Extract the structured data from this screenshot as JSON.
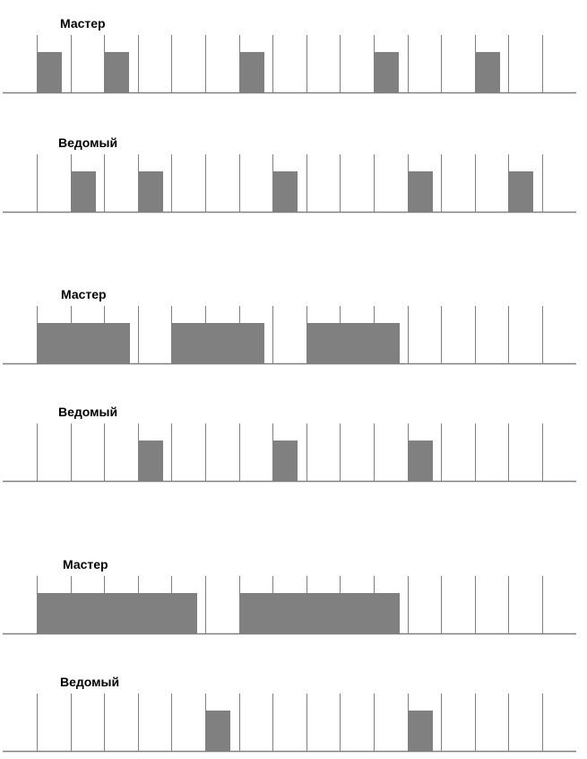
{
  "timeline": {
    "slot_count": 16,
    "colors": {
      "slot_line": "#808080",
      "baseline": "#808080",
      "packet": "#808080",
      "label": "#000000"
    }
  },
  "diagrams": [
    {
      "tracks": [
        {
          "role": "master",
          "label": "Мастер",
          "packets": [
            {
              "start_slot": 0,
              "length_slots": 1
            },
            {
              "start_slot": 2,
              "length_slots": 1
            },
            {
              "start_slot": 6,
              "length_slots": 1
            },
            {
              "start_slot": 10,
              "length_slots": 1
            },
            {
              "start_slot": 13,
              "length_slots": 1
            }
          ]
        },
        {
          "role": "slave",
          "label": "Ведомый",
          "packets": [
            {
              "start_slot": 1,
              "length_slots": 1
            },
            {
              "start_slot": 3,
              "length_slots": 1
            },
            {
              "start_slot": 7,
              "length_slots": 1
            },
            {
              "start_slot": 11,
              "length_slots": 1
            },
            {
              "start_slot": 14,
              "length_slots": 1
            }
          ]
        }
      ]
    },
    {
      "tracks": [
        {
          "role": "master",
          "label": "Мастер",
          "packets": [
            {
              "start_slot": 0,
              "length_slots": 3
            },
            {
              "start_slot": 4,
              "length_slots": 3
            },
            {
              "start_slot": 8,
              "length_slots": 3
            }
          ]
        },
        {
          "role": "slave",
          "label": "Ведомый",
          "packets": [
            {
              "start_slot": 3,
              "length_slots": 1
            },
            {
              "start_slot": 7,
              "length_slots": 1
            },
            {
              "start_slot": 11,
              "length_slots": 1
            }
          ]
        }
      ]
    },
    {
      "tracks": [
        {
          "role": "master",
          "label": "Мастер",
          "packets": [
            {
              "start_slot": 0,
              "length_slots": 5
            },
            {
              "start_slot": 6,
              "length_slots": 5
            }
          ]
        },
        {
          "role": "slave",
          "label": "Ведомый",
          "packets": [
            {
              "start_slot": 5,
              "length_slots": 1
            },
            {
              "start_slot": 11,
              "length_slots": 1
            }
          ]
        }
      ]
    }
  ]
}
